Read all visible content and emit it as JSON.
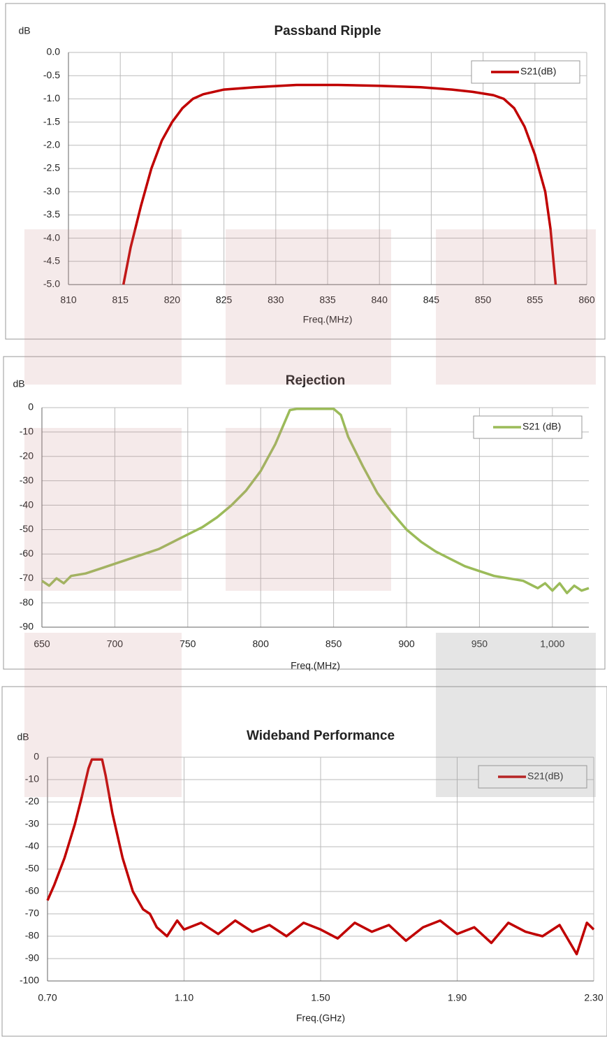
{
  "chart_data": [
    {
      "type": "line",
      "title": "Passband Ripple",
      "y_label": "dB",
      "x_label": "Freq.(MHz)",
      "x": [
        815.3,
        816,
        817,
        818,
        819,
        820,
        821,
        822,
        823,
        825,
        828,
        832,
        836,
        840,
        844,
        847,
        849,
        851,
        852,
        853,
        854,
        855,
        856,
        856.5,
        857
      ],
      "series": [
        {
          "name": "S21(dB)",
          "color": "#c00000",
          "values": [
            -5.0,
            -4.2,
            -3.3,
            -2.5,
            -1.9,
            -1.5,
            -1.2,
            -1.0,
            -0.9,
            -0.8,
            -0.75,
            -0.7,
            -0.7,
            -0.72,
            -0.75,
            -0.8,
            -0.85,
            -0.92,
            -1.0,
            -1.2,
            -1.6,
            -2.2,
            -3.0,
            -3.8,
            -5.0
          ]
        }
      ],
      "xlim": [
        810,
        860
      ],
      "xticks": [
        810,
        815,
        820,
        825,
        830,
        835,
        840,
        845,
        850,
        855,
        860
      ],
      "ylim": [
        -5,
        0
      ],
      "yticks": [
        {
          "value": 0,
          "label": "0.0"
        },
        -0.5,
        {
          "value": -1,
          "label": "-1.0"
        },
        -1.5,
        {
          "value": -2,
          "label": "-2.0"
        },
        -2.5,
        {
          "value": -3,
          "label": "-3.0"
        },
        -3.5,
        {
          "value": -4,
          "label": "-4.0"
        },
        -4.5,
        {
          "value": -5,
          "label": "-5.0"
        }
      ],
      "grid": true,
      "legend": "upper right"
    },
    {
      "type": "line",
      "title": "Rejection",
      "y_label": "dB",
      "x_label": "Freq.(MHz)",
      "x": [
        650,
        655,
        660,
        665,
        670,
        680,
        690,
        700,
        710,
        720,
        730,
        740,
        750,
        760,
        770,
        780,
        790,
        800,
        810,
        815,
        820,
        825,
        850,
        855,
        860,
        870,
        880,
        890,
        900,
        910,
        920,
        930,
        940,
        950,
        960,
        970,
        980,
        990,
        995,
        1000,
        1005,
        1010,
        1015,
        1020,
        1025
      ],
      "series": [
        {
          "name": "S21 (dB)",
          "color": "#9bbb59",
          "values": [
            -71,
            -73,
            -70,
            -72,
            -69,
            -68,
            -66,
            -64,
            -62,
            -60,
            -58,
            -55,
            -52,
            -49,
            -45,
            -40,
            -34,
            -26,
            -15,
            -8,
            -1,
            -0.5,
            -0.5,
            -3,
            -12,
            -24,
            -35,
            -43,
            -50,
            -55,
            -59,
            -62,
            -65,
            -67,
            -69,
            -70,
            -71,
            -74,
            -72,
            -75,
            -72,
            -76,
            -73,
            -75,
            -74
          ]
        }
      ],
      "xlim": [
        650,
        1025
      ],
      "xticks": [
        650,
        700,
        750,
        800,
        850,
        900,
        950,
        {
          "value": 1000,
          "label": "1,000"
        }
      ],
      "ylim": [
        -90,
        0
      ],
      "yticks": [
        0,
        -10,
        -20,
        -30,
        -40,
        -50,
        -60,
        -70,
        -80,
        -90
      ],
      "grid": true,
      "legend": "upper right"
    },
    {
      "type": "line",
      "title": "Wideband Performance",
      "y_label": "dB",
      "x_label": "Freq.(GHz)",
      "x": [
        0.7,
        0.72,
        0.75,
        0.78,
        0.8,
        0.82,
        0.83,
        0.86,
        0.87,
        0.89,
        0.92,
        0.95,
        0.98,
        1.0,
        1.02,
        1.05,
        1.08,
        1.1,
        1.15,
        1.2,
        1.25,
        1.3,
        1.35,
        1.4,
        1.45,
        1.5,
        1.55,
        1.6,
        1.65,
        1.7,
        1.75,
        1.8,
        1.85,
        1.9,
        1.95,
        2.0,
        2.05,
        2.1,
        2.15,
        2.2,
        2.25,
        2.28,
        2.3
      ],
      "series": [
        {
          "name": "S21(dB)",
          "color": "#c00000",
          "values": [
            -64,
            -57,
            -45,
            -30,
            -18,
            -5,
            -1,
            -1,
            -8,
            -25,
            -45,
            -60,
            -68,
            -70,
            -76,
            -80,
            -73,
            -77,
            -74,
            -79,
            -73,
            -78,
            -75,
            -80,
            -74,
            -77,
            -81,
            -74,
            -78,
            -75,
            -82,
            -76,
            -73,
            -79,
            -76,
            -83,
            -74,
            -78,
            -80,
            -75,
            -88,
            -74,
            -77
          ]
        }
      ],
      "xlim": [
        0.7,
        2.3
      ],
      "xticks": [
        {
          "value": 0.7,
          "label": "0.70"
        },
        {
          "value": 1.1,
          "label": "1.10"
        },
        {
          "value": 1.5,
          "label": "1.50"
        },
        {
          "value": 1.9,
          "label": "1.90"
        },
        {
          "value": 2.3,
          "label": "2.30"
        }
      ],
      "ylim": [
        -100,
        0
      ],
      "yticks": [
        0,
        -10,
        -20,
        -30,
        -40,
        -50,
        -60,
        -70,
        -80,
        -90,
        -100
      ],
      "grid": true,
      "legend": "upper right"
    }
  ]
}
